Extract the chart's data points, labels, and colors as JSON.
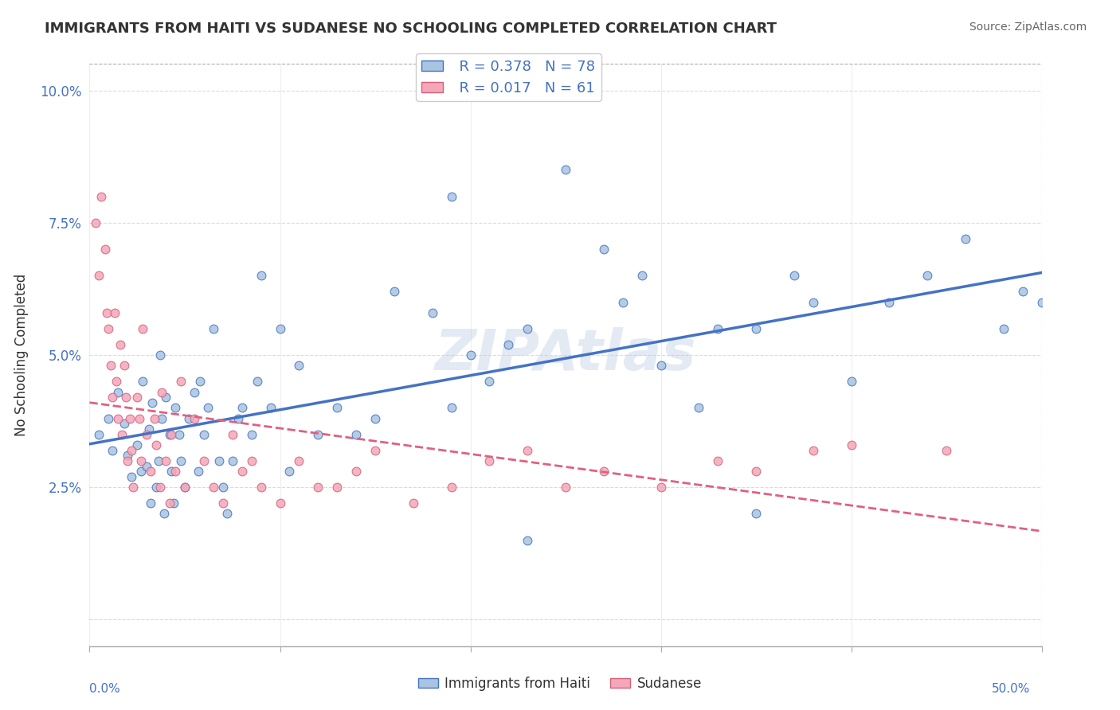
{
  "title": "IMMIGRANTS FROM HAITI VS SUDANESE NO SCHOOLING COMPLETED CORRELATION CHART",
  "source": "Source: ZipAtlas.com",
  "ylabel": "No Schooling Completed",
  "yticks": [
    0.0,
    0.025,
    0.05,
    0.075,
    0.1
  ],
  "ytick_labels": [
    "",
    "2.5%",
    "5.0%",
    "7.5%",
    "10.0%"
  ],
  "xlim": [
    0.0,
    0.5
  ],
  "ylim": [
    -0.005,
    0.105
  ],
  "legend_r1": "R = 0.378",
  "legend_n1": "N = 78",
  "legend_r2": "R = 0.017",
  "legend_n2": "N = 61",
  "haiti_color": "#a8c4e0",
  "sudanese_color": "#f4a7b9",
  "haiti_line_color": "#4472c4",
  "sudanese_line_color": "#e06080",
  "haiti_points_x": [
    0.005,
    0.01,
    0.012,
    0.015,
    0.018,
    0.02,
    0.022,
    0.025,
    0.027,
    0.028,
    0.03,
    0.031,
    0.032,
    0.033,
    0.035,
    0.036,
    0.037,
    0.038,
    0.039,
    0.04,
    0.042,
    0.043,
    0.044,
    0.045,
    0.047,
    0.048,
    0.05,
    0.052,
    0.055,
    0.057,
    0.058,
    0.06,
    0.062,
    0.065,
    0.068,
    0.07,
    0.072,
    0.075,
    0.078,
    0.08,
    0.085,
    0.088,
    0.09,
    0.095,
    0.1,
    0.105,
    0.11,
    0.12,
    0.13,
    0.14,
    0.15,
    0.16,
    0.18,
    0.19,
    0.2,
    0.21,
    0.22,
    0.23,
    0.25,
    0.27,
    0.29,
    0.3,
    0.32,
    0.33,
    0.35,
    0.37,
    0.38,
    0.4,
    0.42,
    0.44,
    0.46,
    0.48,
    0.49,
    0.5,
    0.23,
    0.35,
    0.28,
    0.19
  ],
  "haiti_points_y": [
    0.035,
    0.038,
    0.032,
    0.043,
    0.037,
    0.031,
    0.027,
    0.033,
    0.028,
    0.045,
    0.029,
    0.036,
    0.022,
    0.041,
    0.025,
    0.03,
    0.05,
    0.038,
    0.02,
    0.042,
    0.035,
    0.028,
    0.022,
    0.04,
    0.035,
    0.03,
    0.025,
    0.038,
    0.043,
    0.028,
    0.045,
    0.035,
    0.04,
    0.055,
    0.03,
    0.025,
    0.02,
    0.03,
    0.038,
    0.04,
    0.035,
    0.045,
    0.065,
    0.04,
    0.055,
    0.028,
    0.048,
    0.035,
    0.04,
    0.035,
    0.038,
    0.062,
    0.058,
    0.04,
    0.05,
    0.045,
    0.052,
    0.055,
    0.085,
    0.07,
    0.065,
    0.048,
    0.04,
    0.055,
    0.055,
    0.065,
    0.06,
    0.045,
    0.06,
    0.065,
    0.072,
    0.055,
    0.062,
    0.06,
    0.015,
    0.02,
    0.06,
    0.08
  ],
  "sudanese_points_x": [
    0.003,
    0.005,
    0.006,
    0.008,
    0.009,
    0.01,
    0.011,
    0.012,
    0.013,
    0.014,
    0.015,
    0.016,
    0.017,
    0.018,
    0.019,
    0.02,
    0.021,
    0.022,
    0.023,
    0.025,
    0.026,
    0.027,
    0.028,
    0.03,
    0.032,
    0.034,
    0.035,
    0.037,
    0.038,
    0.04,
    0.042,
    0.043,
    0.045,
    0.048,
    0.05,
    0.055,
    0.06,
    0.065,
    0.07,
    0.075,
    0.08,
    0.085,
    0.09,
    0.1,
    0.11,
    0.12,
    0.13,
    0.14,
    0.15,
    0.17,
    0.19,
    0.21,
    0.23,
    0.25,
    0.27,
    0.3,
    0.33,
    0.35,
    0.38,
    0.4,
    0.45
  ],
  "sudanese_points_y": [
    0.075,
    0.065,
    0.08,
    0.07,
    0.058,
    0.055,
    0.048,
    0.042,
    0.058,
    0.045,
    0.038,
    0.052,
    0.035,
    0.048,
    0.042,
    0.03,
    0.038,
    0.032,
    0.025,
    0.042,
    0.038,
    0.03,
    0.055,
    0.035,
    0.028,
    0.038,
    0.033,
    0.025,
    0.043,
    0.03,
    0.022,
    0.035,
    0.028,
    0.045,
    0.025,
    0.038,
    0.03,
    0.025,
    0.022,
    0.035,
    0.028,
    0.03,
    0.025,
    0.022,
    0.03,
    0.025,
    0.025,
    0.028,
    0.032,
    0.022,
    0.025,
    0.03,
    0.032,
    0.025,
    0.028,
    0.025,
    0.03,
    0.028,
    0.032,
    0.033,
    0.032
  ],
  "background_color": "#ffffff",
  "grid_color": "#cccccc",
  "title_color": "#333333",
  "source_color": "#666666"
}
